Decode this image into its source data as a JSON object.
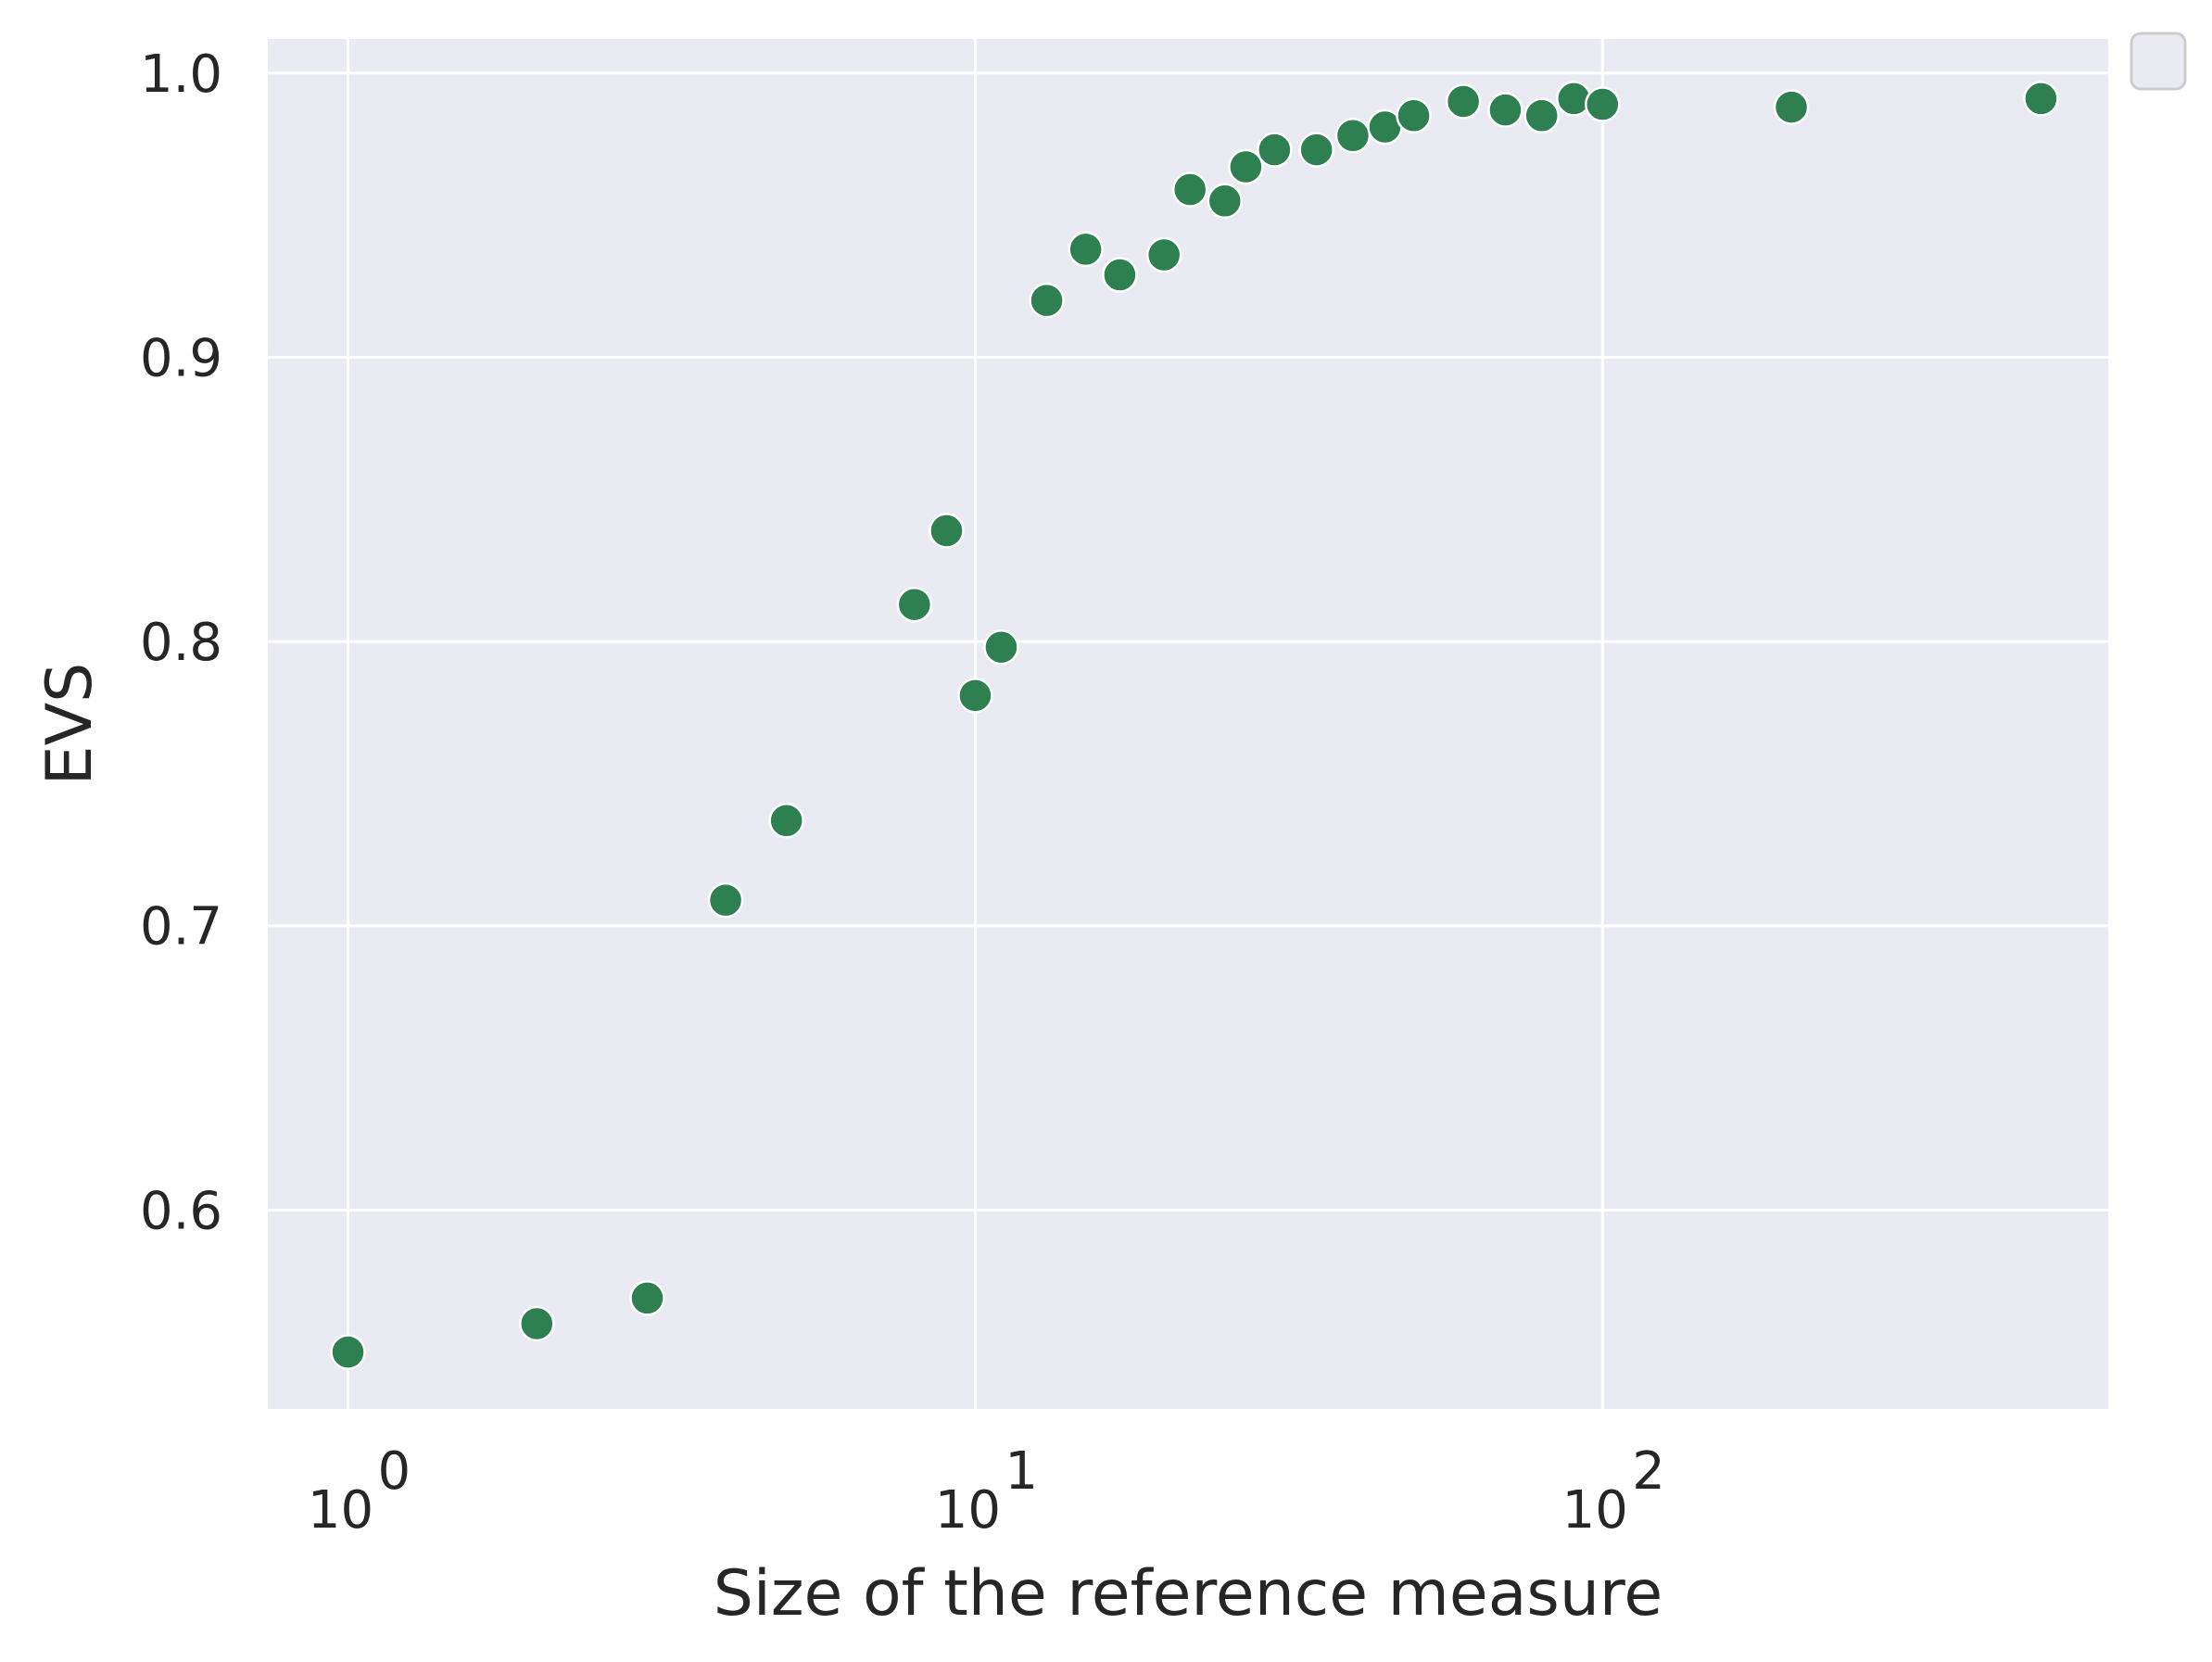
{
  "chart_data": {
    "type": "scatter",
    "title": "",
    "xlabel": "Size of the reference measure",
    "ylabel": "EVS",
    "x_scale": "log",
    "xlim": [
      0.745,
      640
    ],
    "ylim": [
      0.53,
      1.012
    ],
    "x_ticks": [
      {
        "value": 1,
        "base": "10",
        "exp": "0"
      },
      {
        "value": 10,
        "base": "10",
        "exp": "1"
      },
      {
        "value": 100,
        "base": "10",
        "exp": "2"
      }
    ],
    "y_ticks": [
      {
        "value": 0.6,
        "label": "0.6"
      },
      {
        "value": 0.7,
        "label": "0.7"
      },
      {
        "value": 0.8,
        "label": "0.8"
      },
      {
        "value": 0.9,
        "label": "0.9"
      },
      {
        "value": 1.0,
        "label": "1.0"
      }
    ],
    "grid": true,
    "legend": {
      "placement": "upper-right-outside",
      "entries": []
    },
    "colors": {
      "background": "#eaeaf2",
      "grid": "#ffffff",
      "marker": "#2e8050",
      "marker_edge": "#ffffff",
      "text": "#262626"
    },
    "points": [
      {
        "x": 1,
        "y": 0.55
      },
      {
        "x": 2,
        "y": 0.56
      },
      {
        "x": 3,
        "y": 0.569
      },
      {
        "x": 4,
        "y": 0.709
      },
      {
        "x": 5,
        "y": 0.737
      },
      {
        "x": 8,
        "y": 0.813
      },
      {
        "x": 9,
        "y": 0.839
      },
      {
        "x": 10,
        "y": 0.781
      },
      {
        "x": 11,
        "y": 0.798
      },
      {
        "x": 13,
        "y": 0.92
      },
      {
        "x": 15,
        "y": 0.938
      },
      {
        "x": 17,
        "y": 0.929
      },
      {
        "x": 20,
        "y": 0.936
      },
      {
        "x": 22,
        "y": 0.959
      },
      {
        "x": 25,
        "y": 0.955
      },
      {
        "x": 27,
        "y": 0.967
      },
      {
        "x": 30,
        "y": 0.973
      },
      {
        "x": 35,
        "y": 0.973
      },
      {
        "x": 40,
        "y": 0.978
      },
      {
        "x": 45,
        "y": 0.981
      },
      {
        "x": 50,
        "y": 0.985
      },
      {
        "x": 60,
        "y": 0.99
      },
      {
        "x": 70,
        "y": 0.987
      },
      {
        "x": 80,
        "y": 0.985
      },
      {
        "x": 90,
        "y": 0.991
      },
      {
        "x": 100,
        "y": 0.989
      },
      {
        "x": 200,
        "y": 0.988
      },
      {
        "x": 500,
        "y": 0.991
      }
    ]
  }
}
